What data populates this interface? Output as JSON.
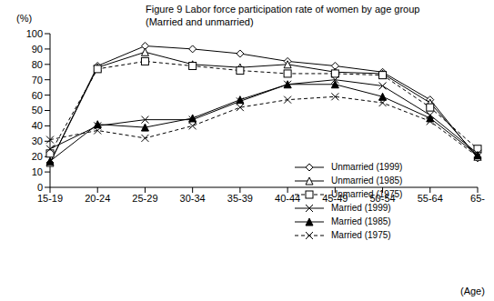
{
  "chart_data": {
    "type": "line",
    "title": "Figure 9 Labor force participation rate of women by age group",
    "subtitle": "(Married and unmarried)",
    "y_label": "(%)",
    "x_label": "(Age)",
    "categories": [
      "15-19",
      "20-24",
      "25-29",
      "30-34",
      "35-39",
      "40-44",
      "45-49",
      "50-54",
      "55-64",
      "65-"
    ],
    "ylim": [
      0,
      100
    ],
    "yticks": [
      0,
      10,
      20,
      30,
      40,
      50,
      60,
      70,
      80,
      90,
      100
    ],
    "grid": false,
    "legend": "lower right",
    "series": [
      {
        "name": "Unmarried (1999)",
        "color": "#000000",
        "marker": "diamond",
        "line_style": "solid",
        "values": [
          16,
          79,
          92,
          90,
          87,
          82,
          79,
          75,
          57,
          19
        ]
      },
      {
        "name": "Unmarried (1985)",
        "color": "#000000",
        "marker": "triangle",
        "line_style": "solid",
        "values": [
          16,
          78,
          88,
          80,
          78,
          80,
          75,
          74,
          55,
          20
        ]
      },
      {
        "name": "Unmarried (1975)",
        "color": "#000000",
        "marker": "square",
        "line_style": "dashed",
        "values": [
          22,
          77,
          82,
          79,
          76,
          74,
          74,
          73,
          52,
          25
        ]
      },
      {
        "name": "Married (1999)",
        "color": "#000000",
        "marker": "x",
        "line_style": "solid",
        "values": [
          25,
          40,
          44,
          44,
          56,
          67,
          70,
          66,
          47,
          22
        ]
      },
      {
        "name": "Married (1985)",
        "color": "#000000",
        "marker": "triangle_filled",
        "line_style": "solid",
        "values": [
          17,
          41,
          39,
          45,
          57,
          67,
          67,
          59,
          45,
          21
        ]
      },
      {
        "name": "Married (1975)",
        "color": "#000000",
        "marker": "x",
        "line_style": "dashed",
        "values": [
          31,
          37,
          32,
          40,
          52,
          57,
          59,
          55,
          43,
          20
        ]
      }
    ]
  }
}
